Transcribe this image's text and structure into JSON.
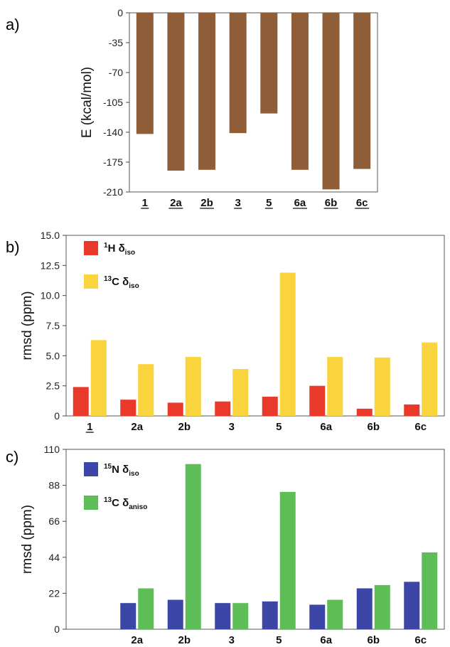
{
  "chart_data": [
    {
      "type": "bar",
      "panel_label": "a)",
      "ylabel": "E (kcal/mol)",
      "ylim": [
        -210,
        0
      ],
      "yticks": [
        0,
        -35,
        -70,
        -105,
        -140,
        -175,
        -210
      ],
      "categories": [
        "1",
        "2a",
        "2b",
        "3",
        "5",
        "6a",
        "6b",
        "6c"
      ],
      "underlined": [
        "1",
        "2a",
        "2b",
        "3",
        "5",
        "6a",
        "6b",
        "6c"
      ],
      "series": [
        {
          "color": "#8f5d37",
          "values": [
            -142,
            -185,
            -184,
            -141,
            -118,
            -184,
            -207,
            -183
          ]
        }
      ],
      "grid": false
    },
    {
      "type": "bar",
      "panel_label": "b)",
      "ylabel": "rmsd (ppm)",
      "ylim": [
        0,
        15
      ],
      "yticks": [
        "0",
        "2.5",
        "5.0",
        "7.5",
        "10.0",
        "12.5",
        "15.0"
      ],
      "categories": [
        "1",
        "2a",
        "2b",
        "3",
        "5",
        "6a",
        "6b",
        "6c"
      ],
      "underlined": [
        "1"
      ],
      "series": [
        {
          "sup": "1",
          "main": "H δ",
          "sub": "iso",
          "color": "#e8392a",
          "values": [
            2.4,
            1.35,
            1.1,
            1.2,
            1.6,
            2.5,
            0.6,
            0.95
          ]
        },
        {
          "sup": "13",
          "main": "C δ",
          "sub": "iso",
          "color": "#f9d43c",
          "values": [
            6.3,
            4.3,
            4.9,
            3.9,
            11.9,
            4.9,
            4.85,
            6.1
          ]
        }
      ],
      "legend": "top-left",
      "grid": false
    },
    {
      "type": "bar",
      "panel_label": "c)",
      "ylabel": "rmsd (ppm)",
      "ylim": [
        0,
        110
      ],
      "yticks": [
        "0",
        "22",
        "44",
        "66",
        "88",
        "110"
      ],
      "categories": [
        "",
        "2a",
        "2b",
        "3",
        "5",
        "6a",
        "6b",
        "6c"
      ],
      "underlined": [],
      "series": [
        {
          "sup": "15",
          "main": "N δ",
          "sub": "iso",
          "color": "#3b46a6",
          "values": [
            null,
            16,
            18,
            16,
            17,
            15,
            25,
            29
          ]
        },
        {
          "sup": "13",
          "main": "C δ",
          "sub": "aniso",
          "color": "#5dbd57",
          "values": [
            null,
            25,
            101,
            16,
            84,
            18,
            27,
            47
          ]
        }
      ],
      "legend": "top-left",
      "grid": false
    }
  ]
}
